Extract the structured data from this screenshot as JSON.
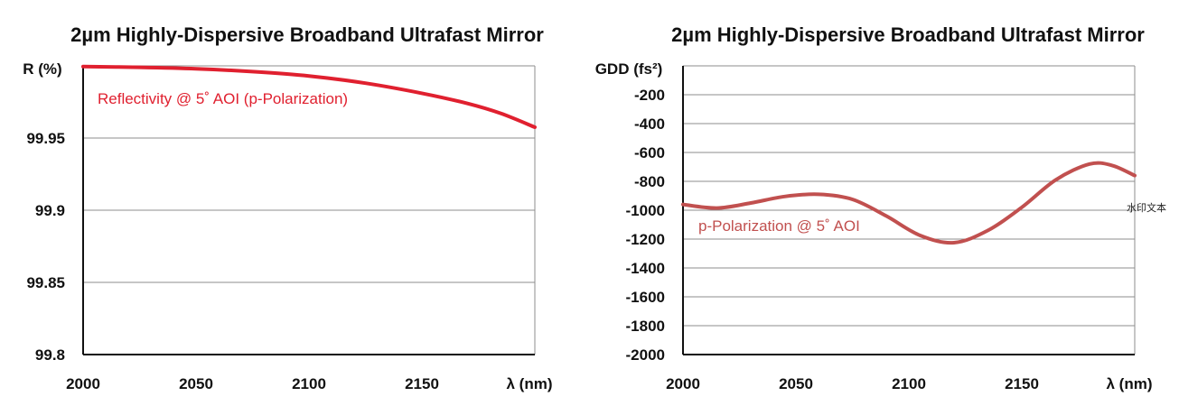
{
  "chart_data": [
    {
      "type": "line",
      "title": "2µm Highly-Dispersive Broadband Ultrafast Mirror",
      "ylabel": "R (%)",
      "xlabel": "λ (nm)",
      "xlim": [
        2000,
        2200
      ],
      "ylim": [
        99.8,
        100
      ],
      "x_ticks": [
        "2000",
        "2050",
        "2100",
        "2150"
      ],
      "y_ticks": [
        "99.8",
        "99.85",
        "99.9",
        "99.95"
      ],
      "grid": true,
      "series": [
        {
          "name": "Reflectivity @ 5˚ AOI (p-Polarization)",
          "color": "#e0202f",
          "x": [
            2000,
            2025,
            2050,
            2075,
            2100,
            2125,
            2150,
            2170,
            2185,
            2200
          ],
          "y": [
            99.9995,
            99.999,
            99.998,
            99.996,
            99.993,
            99.988,
            99.981,
            99.974,
            99.967,
            99.9575
          ]
        }
      ]
    },
    {
      "type": "line",
      "title": "2µm Highly-Dispersive Broadband Ultrafast Mirror",
      "ylabel": "GDD (fs²)",
      "xlabel": "λ (nm)",
      "xlim": [
        2000,
        2200
      ],
      "ylim": [
        -2000,
        0
      ],
      "x_ticks": [
        "2000",
        "2050",
        "2100",
        "2150"
      ],
      "y_ticks": [
        "-200",
        "-400",
        "-600",
        "-800",
        "-1000",
        "-1200",
        "-1400",
        "-1600",
        "-1800",
        "-2000"
      ],
      "grid": true,
      "series": [
        {
          "name": "p-Polarization @ 5˚ AOI",
          "color": "#c1504f",
          "x": [
            2000,
            2015,
            2030,
            2045,
            2060,
            2075,
            2090,
            2105,
            2120,
            2135,
            2150,
            2165,
            2180,
            2190,
            2200
          ],
          "y": [
            -960,
            -985,
            -950,
            -905,
            -890,
            -925,
            -1040,
            -1175,
            -1225,
            -1140,
            -980,
            -790,
            -680,
            -690,
            -760
          ]
        }
      ]
    }
  ],
  "watermark": "水印文本"
}
